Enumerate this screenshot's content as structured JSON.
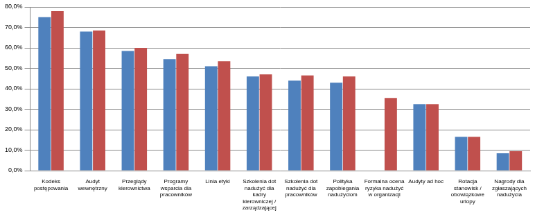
{
  "chart_data": {
    "type": "bar",
    "categories": [
      "Kodeks postępowania",
      "Audyt wewnętrzny",
      "Przeglądy kierownictwa",
      "Programy wsparcia dla pracowników",
      "Linia etyki",
      "Szkolenia dot nadużyć dla kadry kierowniczej / zarządzającej",
      "Szkolenia dot nadużyć dla pracowników",
      "Polityka zapobiegania nadużyciom",
      "Formalna ocena ryzyka nadużyć w organizacji",
      "Audyty ad hoc",
      "Rotacja stanowisk / obowiązkowe urlopy",
      "Nagrody dla zgłaszających nadużycia"
    ],
    "series": [
      {
        "color": "#4f81bd",
        "values": [
          75,
          68,
          58.5,
          54.5,
          51,
          46,
          44,
          43,
          null,
          32.5,
          16.5,
          8.5
        ]
      },
      {
        "color": "#c0504d",
        "values": [
          78,
          68.5,
          60,
          57,
          53.5,
          47,
          46.5,
          46,
          35.5,
          32.5,
          16.5,
          9.5
        ]
      }
    ],
    "ylim": [
      0,
      80
    ],
    "yticks": [
      {
        "value": 0,
        "label": "0,0%"
      },
      {
        "value": 10,
        "label": "10,0%"
      },
      {
        "value": 20,
        "label": "20,0%"
      },
      {
        "value": 30,
        "label": "30,0%"
      },
      {
        "value": 40,
        "label": "40,0%"
      },
      {
        "value": 50,
        "label": "50,0%"
      },
      {
        "value": 60,
        "label": "60,0%"
      },
      {
        "value": 70,
        "label": "70,0%"
      },
      {
        "value": 80,
        "label": "80,0%"
      }
    ],
    "grid": true
  }
}
